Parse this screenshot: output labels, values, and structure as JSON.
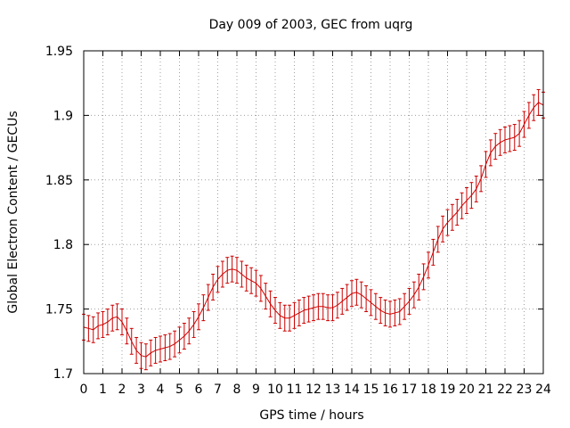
{
  "chart_data": {
    "type": "line",
    "title": "Day 009 of 2003, GEC from uqrg",
    "xlabel": "GPS time / hours",
    "ylabel": "Global Electron Content / GECUs",
    "xlim": [
      0,
      24
    ],
    "ylim": [
      1.7,
      1.95
    ],
    "xticks": [
      "0",
      "1",
      "2",
      "3",
      "4",
      "5",
      "6",
      "7",
      "8",
      "9",
      "10",
      "11",
      "12",
      "13",
      "14",
      "15",
      "16",
      "17",
      "18",
      "19",
      "20",
      "21",
      "22",
      "23",
      "24"
    ],
    "yticks": [
      "1.7",
      "1.75",
      "1.8",
      "1.85",
      "1.9",
      "1.95"
    ],
    "grid": true,
    "legend": "none",
    "colors": {
      "series": "#cc0000"
    },
    "series": [
      {
        "style": "errorbars",
        "x": [
          0,
          0.25,
          0.5,
          0.75,
          1,
          1.25,
          1.5,
          1.75,
          2,
          2.25,
          2.5,
          2.75,
          3,
          3.25,
          3.5,
          3.75,
          4,
          4.25,
          4.5,
          4.75,
          5,
          5.25,
          5.5,
          5.75,
          6,
          6.25,
          6.5,
          6.75,
          7,
          7.25,
          7.5,
          7.75,
          8,
          8.25,
          8.5,
          8.75,
          9,
          9.25,
          9.5,
          9.75,
          10,
          10.25,
          10.5,
          10.75,
          11,
          11.25,
          11.5,
          11.75,
          12,
          12.25,
          12.5,
          12.75,
          13,
          13.25,
          13.5,
          13.75,
          14,
          14.25,
          14.5,
          14.75,
          15,
          15.25,
          15.5,
          15.75,
          16,
          16.25,
          16.5,
          16.75,
          17,
          17.25,
          17.5,
          17.75,
          18,
          18.25,
          18.5,
          18.75,
          19,
          19.25,
          19.5,
          19.75,
          20,
          20.25,
          20.5,
          20.75,
          21,
          21.25,
          21.5,
          21.75,
          22,
          22.25,
          22.5,
          22.75,
          23,
          23.25,
          23.5,
          23.75,
          24
        ],
        "y": [
          1.736,
          1.735,
          1.734,
          1.737,
          1.738,
          1.74,
          1.743,
          1.744,
          1.74,
          1.733,
          1.725,
          1.718,
          1.714,
          1.713,
          1.716,
          1.718,
          1.719,
          1.72,
          1.721,
          1.723,
          1.726,
          1.729,
          1.733,
          1.738,
          1.744,
          1.751,
          1.759,
          1.767,
          1.773,
          1.777,
          1.78,
          1.781,
          1.78,
          1.777,
          1.774,
          1.772,
          1.77,
          1.766,
          1.76,
          1.754,
          1.749,
          1.745,
          1.743,
          1.743,
          1.745,
          1.747,
          1.749,
          1.75,
          1.751,
          1.752,
          1.752,
          1.751,
          1.751,
          1.753,
          1.756,
          1.759,
          1.762,
          1.763,
          1.761,
          1.758,
          1.755,
          1.752,
          1.749,
          1.747,
          1.746,
          1.747,
          1.748,
          1.752,
          1.756,
          1.761,
          1.767,
          1.775,
          1.784,
          1.794,
          1.804,
          1.812,
          1.817,
          1.821,
          1.825,
          1.83,
          1.834,
          1.838,
          1.843,
          1.851,
          1.862,
          1.871,
          1.876,
          1.879,
          1.881,
          1.882,
          1.883,
          1.886,
          1.893,
          1.9,
          1.906,
          1.91,
          1.908
        ],
        "error": 0.01
      }
    ]
  }
}
